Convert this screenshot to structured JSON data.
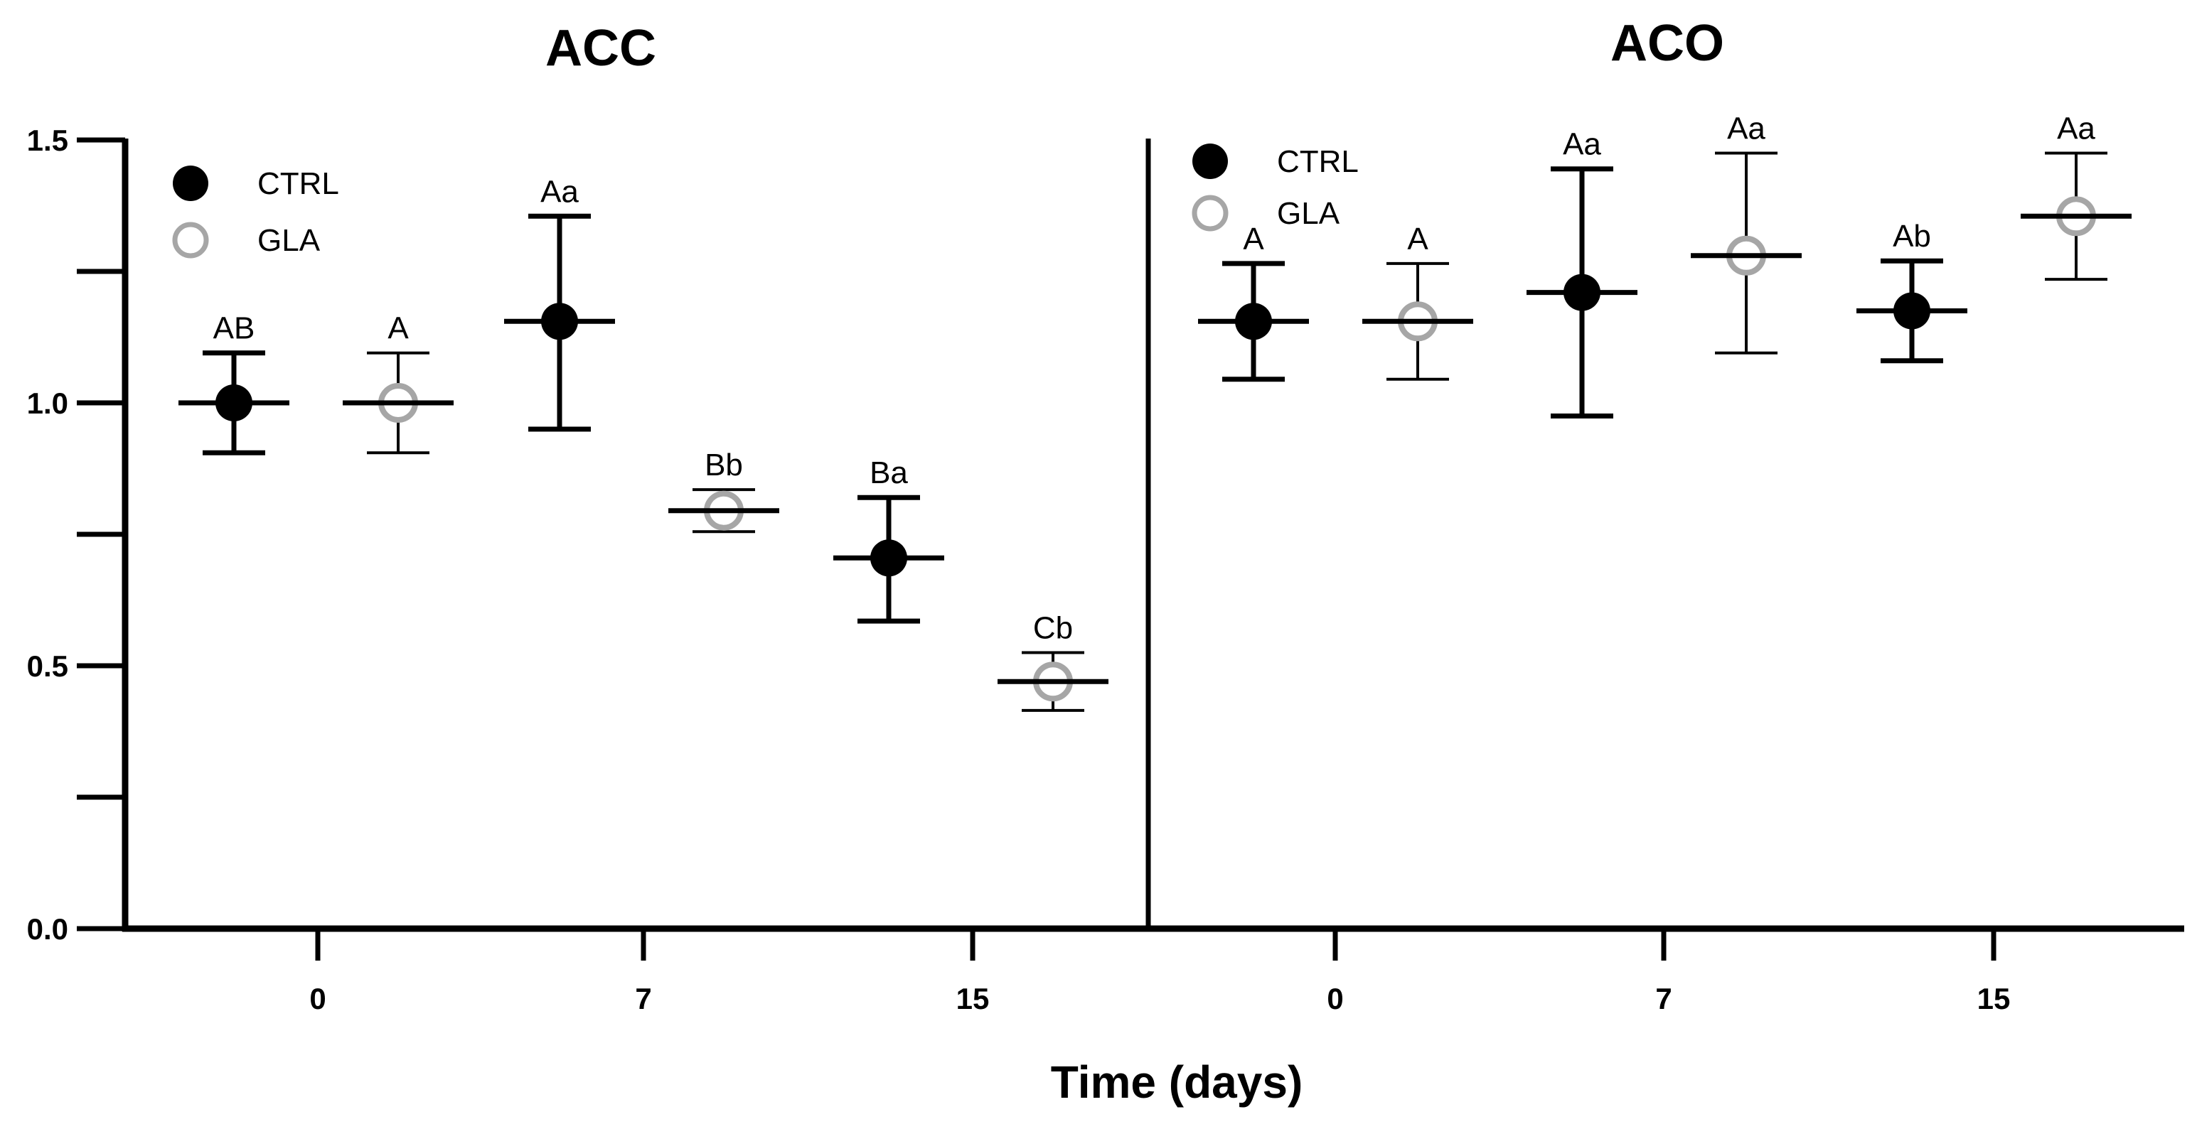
{
  "chart_data": {
    "type": "scatter",
    "subtype": "dot-with-error-bars",
    "xlabel": "Time (days)",
    "ylabel": "",
    "ylim": [
      0,
      1.5
    ],
    "yticks": [
      "0.0",
      "0.5",
      "1.0",
      "1.5"
    ],
    "legend": {
      "placement": "top-left",
      "entries": [
        {
          "name": "CTRL",
          "marker": "filled-circle",
          "color": "#000000"
        },
        {
          "name": "GLA",
          "marker": "open-circle",
          "color": "#a6a6a6"
        }
      ]
    },
    "panels": [
      {
        "title": "ACC",
        "categories": [
          "0",
          "7",
          "15"
        ],
        "series": [
          {
            "name": "CTRL",
            "values": [
              1.0,
              1.155,
              0.705
            ],
            "error_low": [
              0.905,
              0.95,
              0.585
            ],
            "error_high": [
              1.095,
              1.355,
              0.82
            ],
            "labels": [
              "AB",
              "Aa",
              "Ba"
            ]
          },
          {
            "name": "GLA",
            "values": [
              1.0,
              0.795,
              0.47
            ],
            "error_low": [
              0.905,
              0.755,
              0.415
            ],
            "error_high": [
              1.095,
              0.835,
              0.525
            ],
            "labels": [
              "A",
              "Bb",
              "Cb"
            ]
          }
        ]
      },
      {
        "title": "ACO",
        "categories": [
          "0",
          "7",
          "15"
        ],
        "series": [
          {
            "name": "CTRL",
            "values": [
              1.155,
              1.21,
              1.175
            ],
            "error_low": [
              1.045,
              0.975,
              1.08
            ],
            "error_high": [
              1.265,
              1.445,
              1.27
            ],
            "labels": [
              "A",
              "Aa",
              "Ab"
            ]
          },
          {
            "name": "GLA",
            "values": [
              1.155,
              1.28,
              1.355
            ],
            "error_low": [
              1.045,
              1.095,
              1.235
            ],
            "error_high": [
              1.265,
              1.475,
              1.475
            ],
            "labels": [
              "A",
              "Aa",
              "Aa"
            ]
          }
        ]
      }
    ]
  }
}
